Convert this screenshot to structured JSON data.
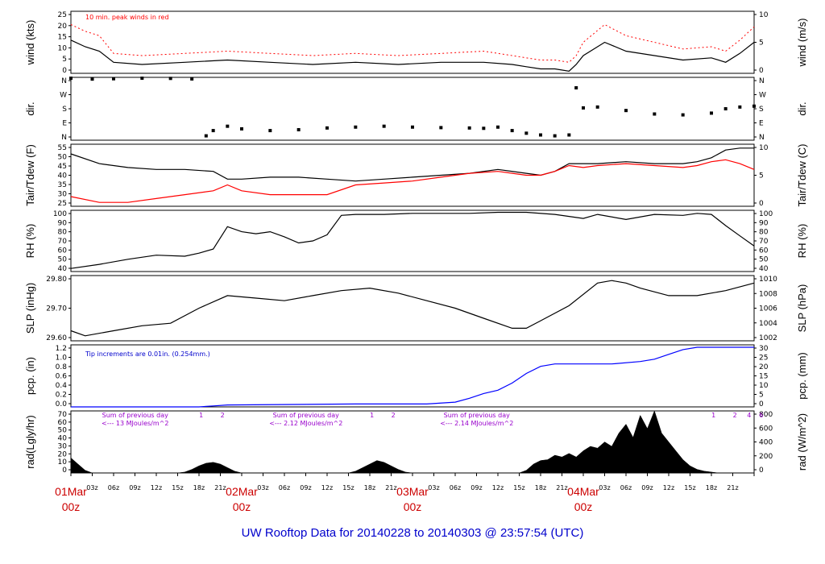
{
  "title": "UW Rooftop Data for 20140228  to  20140303 @ 23:57:54  (UTC)",
  "colors": {
    "title": "#0000cc",
    "day_labels": "#cc0000",
    "peak": "#ff0000",
    "pcp_note": "#0000cc",
    "pcp_line": "#0000ff",
    "rad_annot": "#9900cc",
    "dew": "#ff0000"
  },
  "x_axis": {
    "day_labels": [
      {
        "day": "01Mar",
        "hour": "00z"
      },
      {
        "day": "02Mar",
        "hour": "00z"
      },
      {
        "day": "03Mar",
        "hour": "00z"
      },
      {
        "day": "04Mar",
        "hour": "00z"
      }
    ],
    "hour_ticks": [
      "03z",
      "06z",
      "09z",
      "12z",
      "15z",
      "18z",
      "21z"
    ]
  },
  "chart_data": [
    {
      "type": "line",
      "id": "wind",
      "left_label": "wind (kts)",
      "right_label": "wind (m/s)",
      "ylim": [
        0,
        28
      ],
      "left_ticks": [
        "25",
        "20",
        "15",
        "10",
        "5",
        "0"
      ],
      "right_ticks": [
        "10",
        "5",
        "0"
      ],
      "annotation": "10 min. peak winds in red",
      "series": [
        {
          "color": "#000000",
          "x_hours": [
            0,
            2,
            4,
            6,
            10,
            16,
            22,
            28,
            34,
            40,
            46,
            52,
            58,
            62,
            64,
            66,
            68,
            70,
            71,
            72,
            75,
            78,
            82,
            86,
            90,
            92,
            94,
            96
          ],
          "values": [
            15,
            12,
            10,
            5,
            4,
            5,
            6,
            5,
            4,
            5,
            4,
            5,
            5,
            4,
            3,
            2,
            2,
            1,
            4,
            8,
            14,
            10,
            8,
            6,
            7,
            5,
            9,
            14
          ]
        },
        {
          "name": "10 min. peak winds",
          "color": "#ff0000",
          "x_hours": [
            0,
            2,
            4,
            6,
            10,
            16,
            22,
            28,
            34,
            40,
            46,
            52,
            58,
            62,
            64,
            66,
            68,
            70,
            71,
            72,
            75,
            78,
            82,
            86,
            90,
            92,
            94,
            96
          ],
          "values": [
            22,
            19,
            17,
            9,
            8,
            9,
            10,
            9,
            8,
            9,
            8,
            9,
            10,
            8,
            7,
            6,
            6,
            5,
            8,
            14,
            22,
            17,
            14,
            11,
            12,
            10,
            15,
            21
          ]
        }
      ]
    },
    {
      "type": "scatter",
      "id": "direction",
      "left_label": "dir.",
      "right_label": "dir.",
      "ylim": [
        0,
        360
      ],
      "left_ticks": [
        "N",
        "W",
        "S",
        "E",
        "N"
      ],
      "right_ticks": [
        "N",
        "W",
        "S",
        "E",
        "N"
      ],
      "series": [
        {
          "color": "#000000",
          "x_hours": [
            0,
            3,
            6,
            10,
            14,
            17,
            19,
            20,
            22,
            24,
            28,
            32,
            36,
            40,
            44,
            48,
            52,
            56,
            58,
            60,
            62,
            64,
            66,
            68,
            70,
            71,
            72,
            74,
            78,
            82,
            86,
            90,
            92,
            94,
            96
          ],
          "values": [
            355,
            350,
            352,
            355,
            354,
            351,
            25,
            55,
            80,
            65,
            55,
            60,
            70,
            75,
            80,
            75,
            72,
            70,
            68,
            75,
            55,
            40,
            30,
            25,
            30,
            300,
            185,
            190,
            170,
            150,
            145,
            155,
            180,
            190,
            195
          ]
        }
      ]
    },
    {
      "type": "line",
      "id": "temperature",
      "left_label": "Tair/Tdew (F)",
      "right_label": "Tair/Tdew (C)",
      "ylim": [
        25,
        57
      ],
      "left_ticks": [
        "55",
        "50",
        "45",
        "40",
        "35",
        "30",
        "25"
      ],
      "right_ticks": [
        "10",
        "5",
        "0"
      ],
      "series": [
        {
          "name": "Tair",
          "color": "#000000",
          "x_hours": [
            0,
            4,
            8,
            12,
            16,
            20,
            22,
            24,
            28,
            32,
            36,
            40,
            44,
            48,
            52,
            56,
            60,
            64,
            66,
            68,
            70,
            72,
            74,
            78,
            82,
            86,
            88,
            90,
            92,
            94,
            96
          ],
          "values": [
            52,
            47,
            45,
            44,
            44,
            43,
            39,
            39,
            40,
            40,
            39,
            38,
            39,
            40,
            41,
            42,
            44,
            42,
            41,
            43,
            47,
            47,
            47,
            48,
            47,
            47,
            48,
            50,
            54,
            55,
            55
          ]
        },
        {
          "name": "Tdew",
          "color": "#ff0000",
          "x_hours": [
            0,
            4,
            8,
            12,
            16,
            20,
            22,
            24,
            28,
            32,
            36,
            40,
            44,
            48,
            52,
            56,
            60,
            64,
            66,
            68,
            70,
            72,
            74,
            78,
            82,
            86,
            88,
            90,
            92,
            94,
            96
          ],
          "values": [
            30,
            27,
            27,
            29,
            31,
            33,
            36,
            33,
            31,
            31,
            31,
            36,
            37,
            38,
            40,
            42,
            43,
            41,
            41,
            43,
            46,
            45,
            46,
            47,
            46,
            45,
            46,
            48,
            49,
            47,
            44
          ]
        }
      ]
    },
    {
      "type": "line",
      "id": "humidity",
      "left_label": "RH (%)",
      "right_label": "RH (%)",
      "ylim": [
        40,
        100
      ],
      "left_ticks": [
        "100",
        "90",
        "80",
        "70",
        "60",
        "50",
        "40"
      ],
      "right_ticks": [
        "100",
        "90",
        "80",
        "70",
        "60",
        "50",
        "40"
      ],
      "series": [
        {
          "color": "#000000",
          "x_hours": [
            0,
            4,
            8,
            12,
            16,
            18,
            20,
            22,
            24,
            26,
            28,
            30,
            32,
            34,
            36,
            38,
            40,
            44,
            48,
            52,
            56,
            60,
            64,
            68,
            72,
            74,
            78,
            82,
            86,
            88,
            90,
            92,
            94,
            96
          ],
          "values": [
            43,
            47,
            52,
            56,
            55,
            58,
            62,
            84,
            79,
            77,
            79,
            74,
            68,
            70,
            76,
            95,
            96,
            96,
            97,
            97,
            97,
            98,
            98,
            96,
            92,
            96,
            91,
            96,
            95,
            97,
            96,
            85,
            75,
            65
          ]
        }
      ]
    },
    {
      "type": "line",
      "id": "pressure",
      "left_label": "SLP (inHg)",
      "right_label": "SLP (hPa)",
      "ylim": [
        29.56,
        29.82
      ],
      "left_ticks": [
        "29.80",
        "29.70",
        "29.60"
      ],
      "right_ticks": [
        "1010",
        "1008",
        "1006",
        "1004",
        "1002"
      ],
      "series": [
        {
          "color": "#000000",
          "x_hours": [
            0,
            2,
            6,
            10,
            14,
            18,
            22,
            26,
            30,
            34,
            38,
            42,
            46,
            50,
            54,
            58,
            62,
            64,
            66,
            70,
            74,
            76,
            78,
            80,
            84,
            88,
            92,
            96
          ],
          "values": [
            29.6,
            29.58,
            29.6,
            29.62,
            29.63,
            29.69,
            29.74,
            29.73,
            29.72,
            29.74,
            29.76,
            29.77,
            29.75,
            29.72,
            29.69,
            29.65,
            29.61,
            29.61,
            29.64,
            29.7,
            29.79,
            29.8,
            29.79,
            29.77,
            29.74,
            29.74,
            29.76,
            29.79
          ]
        }
      ]
    },
    {
      "type": "area",
      "id": "precipitation",
      "left_label": "pcp. (in)",
      "right_label": "pcp. (mm)",
      "ylim": [
        0,
        1.3
      ],
      "left_ticks": [
        "1.2",
        "1.0",
        "0.8",
        "0.6",
        "0.4",
        "0.2",
        "0.0"
      ],
      "right_ticks": [
        "30",
        "25",
        "20",
        "15",
        "10",
        "5",
        "0"
      ],
      "annotation": "Tip increments are 0.01in. (0.254mm.)",
      "series": [
        {
          "color": "#0000ff",
          "x_hours": [
            0,
            18,
            20,
            22,
            40,
            50,
            54,
            56,
            58,
            60,
            62,
            64,
            66,
            68,
            72,
            76,
            80,
            82,
            84,
            86,
            88,
            96
          ],
          "values": [
            0,
            0,
            0.02,
            0.04,
            0.06,
            0.06,
            0.1,
            0.18,
            0.28,
            0.35,
            0.5,
            0.7,
            0.85,
            0.9,
            0.9,
            0.9,
            0.95,
            1.0,
            1.1,
            1.2,
            1.25,
            1.25
          ]
        }
      ]
    },
    {
      "type": "area",
      "id": "radiation",
      "left_label": "rad(Lgly/hr)",
      "right_label": "rad (W/m^2)",
      "ylim": [
        0,
        70
      ],
      "left_ticks": [
        "70",
        "60",
        "50",
        "40",
        "30",
        "20",
        "10",
        "0"
      ],
      "right_ticks": [
        "800",
        "600",
        "400",
        "200",
        "0"
      ],
      "annotations": [
        {
          "line1": "Sum of previous day",
          "line2": "<--- 13 MJoules/m^2"
        },
        {
          "line1": "Sum of previous day",
          "line2": "<--- 2.12 MJoules/m^2"
        },
        {
          "line1": "Sum of previous day",
          "line2": "<--- 2.14 MJoules/m^2"
        }
      ],
      "markers": [
        "1",
        "2",
        "1",
        "2",
        "1",
        "2",
        "4",
        "6"
      ],
      "series": [
        {
          "color": "#000000",
          "x_hours": [
            0,
            1,
            2,
            3,
            15,
            16,
            17,
            18,
            19,
            20,
            21,
            22,
            23,
            24,
            39,
            40,
            41,
            42,
            43,
            44,
            45,
            46,
            47,
            48,
            63,
            64,
            65,
            66,
            67,
            68,
            69,
            70,
            71,
            72,
            73,
            74,
            75,
            76,
            77,
            78,
            79,
            80,
            81,
            82,
            83,
            84,
            85,
            86,
            87,
            88,
            89,
            90,
            91,
            92,
            93,
            94,
            95,
            96
          ],
          "values": [
            17,
            10,
            3,
            0,
            0,
            1,
            4,
            8,
            11,
            12,
            10,
            6,
            2,
            0,
            0,
            2,
            6,
            10,
            14,
            12,
            8,
            4,
            1,
            0,
            0,
            3,
            10,
            14,
            15,
            20,
            18,
            22,
            18,
            25,
            30,
            28,
            35,
            30,
            45,
            55,
            40,
            65,
            50,
            70,
            45,
            35,
            25,
            15,
            8,
            4,
            2,
            1,
            0,
            0,
            0,
            0,
            0,
            0
          ]
        }
      ]
    }
  ]
}
